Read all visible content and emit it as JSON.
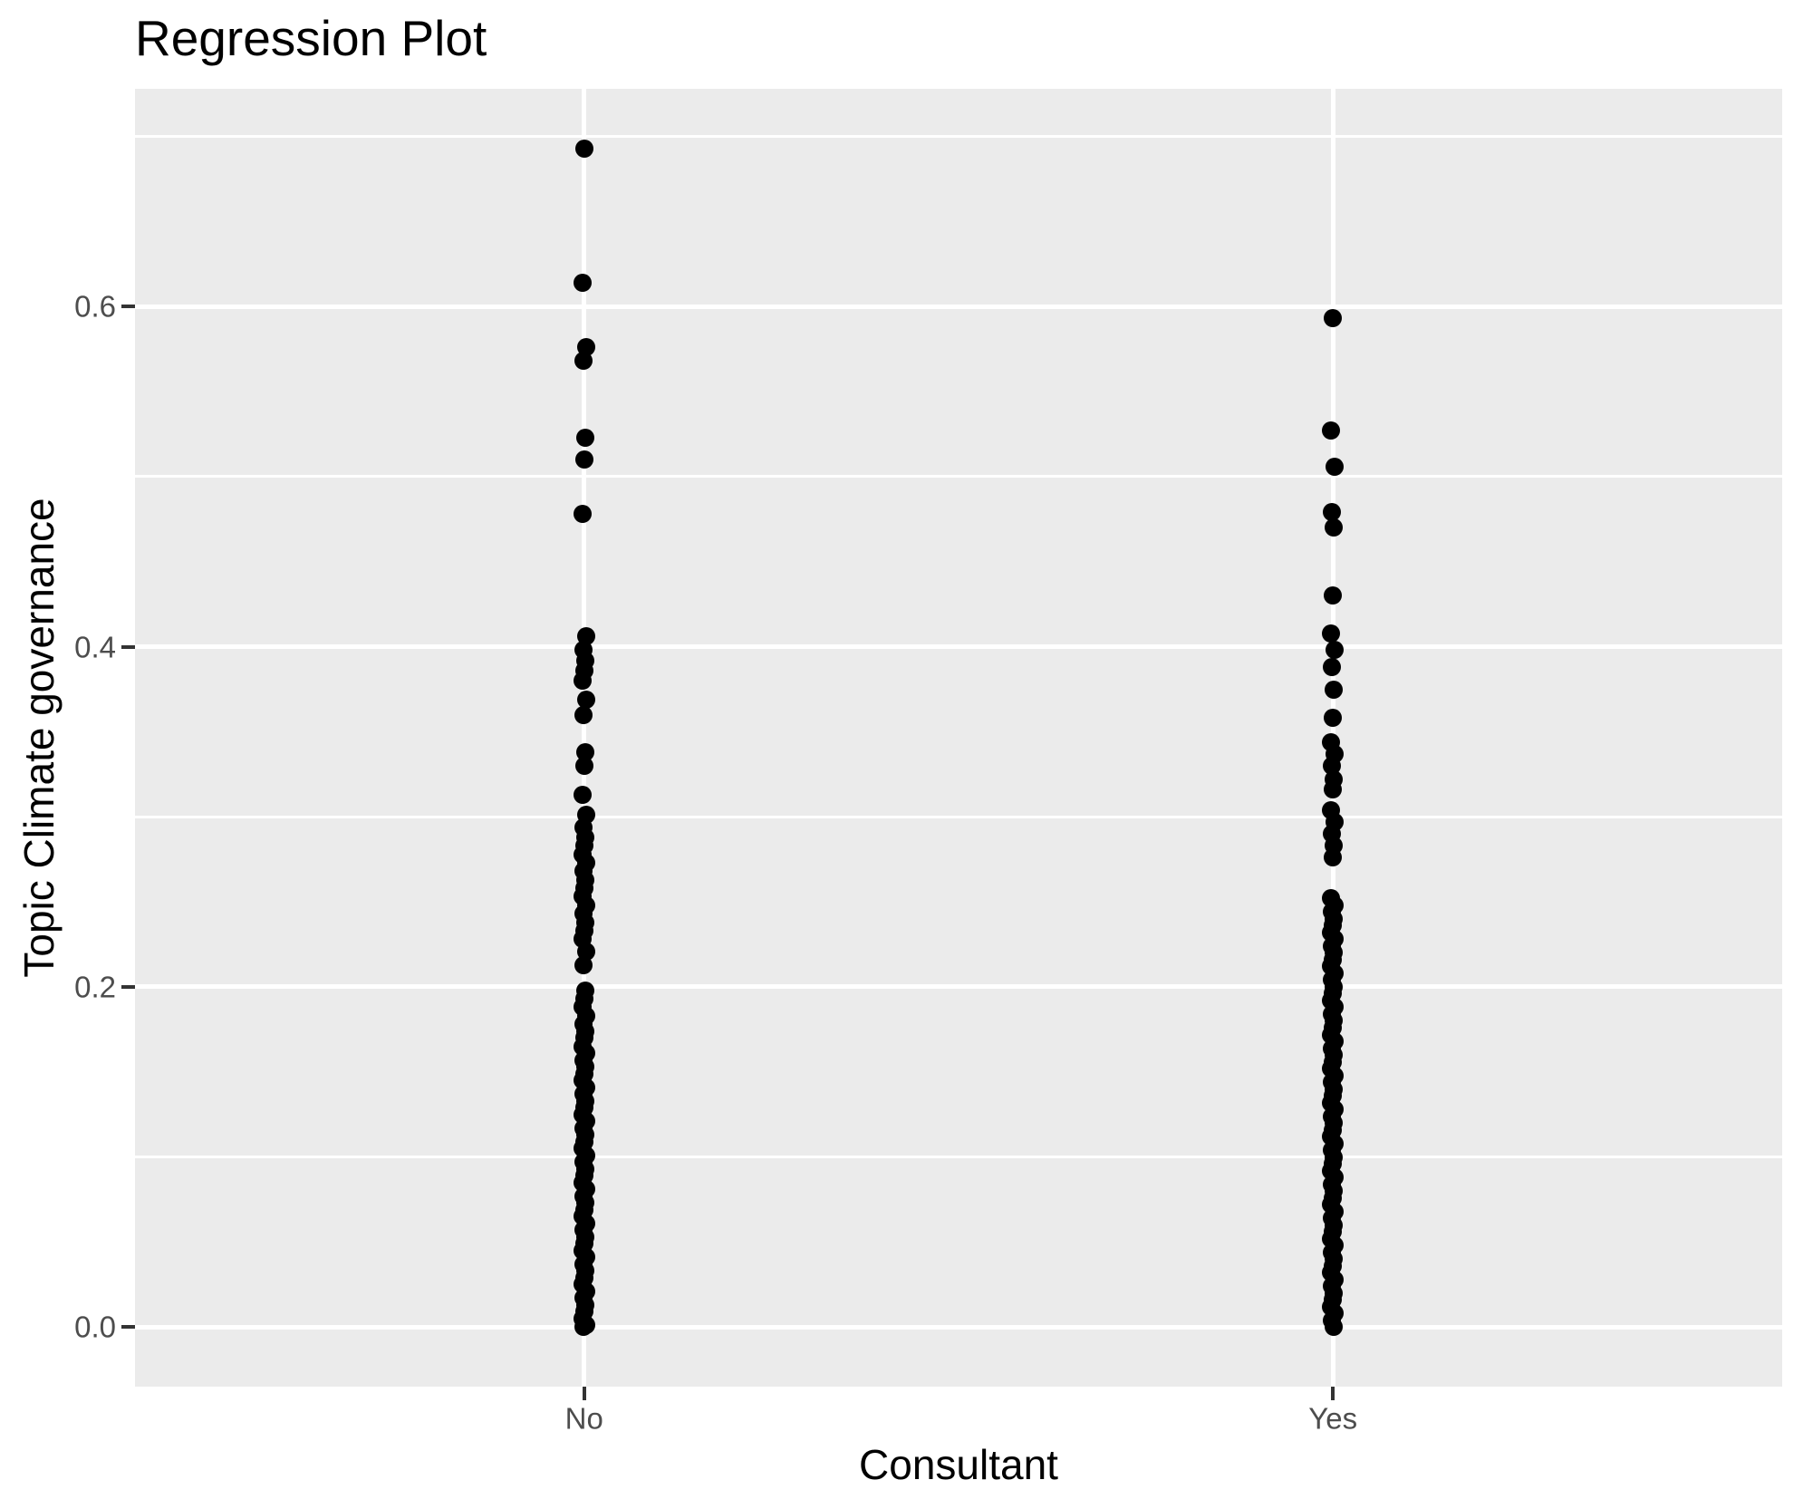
{
  "chart_data": {
    "type": "scatter",
    "title": "Regression Plot",
    "xlabel": "Consultant",
    "ylabel": "Topic Climate governance",
    "categories": [
      "No",
      "Yes"
    ],
    "ylim": [
      -0.035,
      0.728
    ],
    "grid": true,
    "legend": "none",
    "y_ticks": {
      "labels": [
        "0.0",
        "0.2",
        "0.4",
        "0.6"
      ],
      "values": [
        0.0,
        0.2,
        0.4,
        0.6
      ]
    },
    "y_minor_ticks": [
      0.1,
      0.3,
      0.5,
      0.7
    ],
    "colors": {
      "panel_background": "#EBEBEB",
      "gridline": "#FFFFFF",
      "point": "#000000",
      "tick_label": "#4D4D4D",
      "axis_title": "#000000",
      "plot_title": "#000000",
      "tick_mark": "#333333"
    },
    "series": [
      {
        "name": "No",
        "values": [
          0.693,
          0.614,
          0.576,
          0.568,
          0.523,
          0.51,
          0.478,
          0.406,
          0.398,
          0.392,
          0.386,
          0.38,
          0.369,
          0.36,
          0.338,
          0.33,
          0.313,
          0.301,
          0.294,
          0.288,
          0.283,
          0.278,
          0.273,
          0.268,
          0.263,
          0.258,
          0.253,
          0.248,
          0.243,
          0.238,
          0.233,
          0.228,
          0.221,
          0.213,
          0.198,
          0.193,
          0.188,
          0.183,
          0.178,
          0.174,
          0.17,
          0.165,
          0.161,
          0.157,
          0.153,
          0.149,
          0.145,
          0.141,
          0.137,
          0.133,
          0.129,
          0.125,
          0.121,
          0.117,
          0.113,
          0.109,
          0.105,
          0.101,
          0.097,
          0.093,
          0.089,
          0.085,
          0.081,
          0.077,
          0.073,
          0.069,
          0.065,
          0.061,
          0.057,
          0.053,
          0.049,
          0.045,
          0.041,
          0.037,
          0.033,
          0.029,
          0.025,
          0.021,
          0.017,
          0.013,
          0.009,
          0.005,
          0.001,
          0.0
        ]
      },
      {
        "name": "Yes",
        "values": [
          0.593,
          0.527,
          0.506,
          0.479,
          0.47,
          0.43,
          0.408,
          0.398,
          0.388,
          0.375,
          0.358,
          0.344,
          0.337,
          0.33,
          0.322,
          0.316,
          0.304,
          0.297,
          0.29,
          0.283,
          0.276,
          0.252,
          0.248,
          0.244,
          0.24,
          0.236,
          0.232,
          0.228,
          0.224,
          0.22,
          0.216,
          0.212,
          0.208,
          0.204,
          0.2,
          0.196,
          0.192,
          0.188,
          0.184,
          0.18,
          0.176,
          0.172,
          0.168,
          0.164,
          0.16,
          0.156,
          0.152,
          0.148,
          0.144,
          0.14,
          0.136,
          0.132,
          0.128,
          0.124,
          0.12,
          0.116,
          0.112,
          0.108,
          0.104,
          0.1,
          0.096,
          0.092,
          0.088,
          0.084,
          0.08,
          0.076,
          0.072,
          0.068,
          0.064,
          0.06,
          0.056,
          0.052,
          0.048,
          0.044,
          0.04,
          0.036,
          0.032,
          0.028,
          0.024,
          0.02,
          0.016,
          0.012,
          0.008,
          0.004,
          0.0
        ]
      }
    ]
  }
}
